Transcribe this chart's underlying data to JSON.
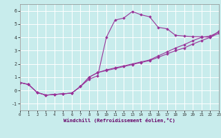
{
  "xlabel": "Windchill (Refroidissement éolien,°C)",
  "bg_color": "#c8ecec",
  "grid_color": "#ffffff",
  "line_color": "#993399",
  "xlim": [
    0,
    23
  ],
  "ylim": [
    -1.5,
    6.5
  ],
  "xticks": [
    0,
    1,
    2,
    3,
    4,
    5,
    6,
    7,
    8,
    9,
    10,
    11,
    12,
    13,
    14,
    15,
    16,
    17,
    18,
    19,
    20,
    21,
    22,
    23
  ],
  "yticks": [
    -1,
    0,
    1,
    2,
    3,
    4,
    5,
    6
  ],
  "curve1_x": [
    0,
    1,
    2,
    3,
    4,
    5,
    6,
    7,
    8,
    9,
    10,
    11,
    12,
    13,
    14,
    15,
    16,
    17,
    18,
    19,
    20,
    21,
    22,
    23
  ],
  "curve1_y": [
    0.6,
    0.45,
    -0.15,
    -0.35,
    -0.3,
    -0.25,
    -0.2,
    0.3,
    1.0,
    1.35,
    1.5,
    1.65,
    1.8,
    1.95,
    2.1,
    2.25,
    2.5,
    2.75,
    3.0,
    3.2,
    3.5,
    3.75,
    4.0,
    4.3
  ],
  "curve2_x": [
    0,
    1,
    2,
    3,
    4,
    5,
    6,
    7,
    8,
    9,
    10,
    11,
    12,
    13,
    14,
    15,
    16,
    17,
    18,
    19,
    20,
    21,
    22,
    23
  ],
  "curve2_y": [
    0.6,
    0.45,
    -0.15,
    -0.35,
    -0.3,
    -0.25,
    -0.2,
    0.3,
    0.85,
    1.1,
    4.0,
    5.3,
    5.45,
    5.95,
    5.7,
    5.55,
    4.75,
    4.65,
    4.15,
    4.1,
    4.05,
    4.05,
    4.0,
    4.45
  ],
  "curve3_x": [
    0,
    1,
    2,
    3,
    4,
    5,
    6,
    7,
    8,
    9,
    10,
    11,
    12,
    13,
    14,
    15,
    16,
    17,
    18,
    19,
    20,
    21,
    22,
    23
  ],
  "curve3_y": [
    0.6,
    0.45,
    -0.15,
    -0.35,
    -0.3,
    -0.25,
    -0.2,
    0.3,
    1.0,
    1.35,
    1.55,
    1.7,
    1.85,
    2.0,
    2.15,
    2.3,
    2.6,
    2.9,
    3.2,
    3.45,
    3.75,
    4.0,
    4.1,
    4.4
  ]
}
